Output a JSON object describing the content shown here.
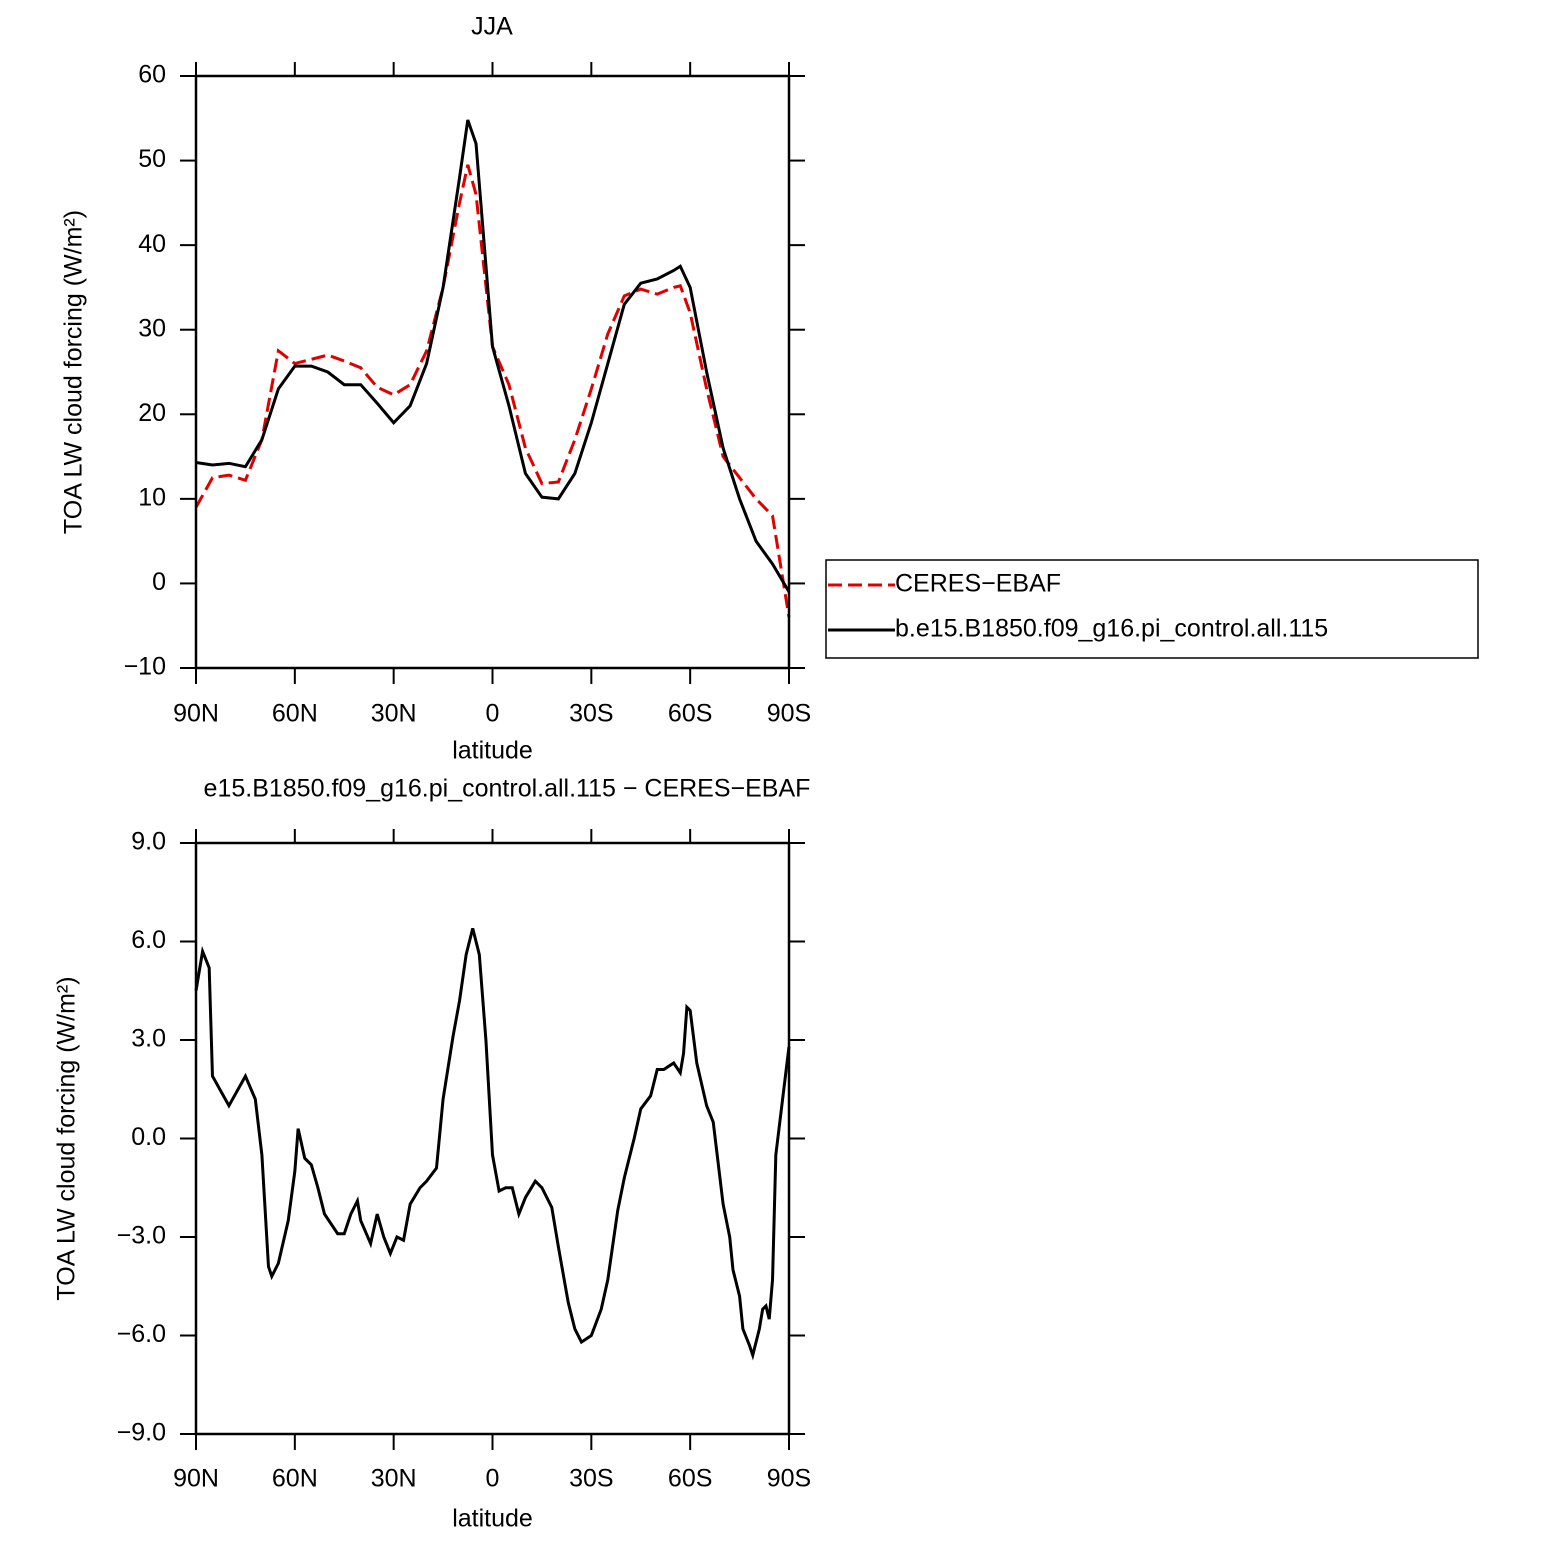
{
  "chart_data": [
    {
      "type": "line",
      "title": "JJA",
      "xlabel": "latitude",
      "ylabel": "TOA LW cloud forcing (W/m²)",
      "x": [
        90,
        85,
        80,
        75,
        70,
        65,
        60,
        55,
        50,
        45,
        40,
        35,
        30,
        25,
        20,
        15,
        10,
        7.5,
        5,
        0,
        -5,
        -10,
        -15,
        -20,
        -25,
        -30,
        -35,
        -40,
        -45,
        -50,
        -55,
        -57,
        -60,
        -65,
        -70,
        -75,
        -80,
        -85,
        -90
      ],
      "series": [
        {
          "name": "CERES−EBAF",
          "color": "#e00000",
          "style": "dashed",
          "values": [
            9,
            12.5,
            12.8,
            12.2,
            17,
            27.5,
            26,
            26.5,
            27,
            26.3,
            25.5,
            23.2,
            22.3,
            23.5,
            27.5,
            35,
            45,
            49.5,
            46,
            28,
            23.5,
            16,
            11.8,
            12,
            17,
            23,
            29.5,
            34,
            34.8,
            34.2,
            35,
            35.2,
            32,
            23,
            15,
            12.5,
            10,
            8,
            -4
          ]
        },
        {
          "name": "b.e15.B1850.f09_g16.pi_control.all.115",
          "color": "#000000",
          "style": "solid",
          "values": [
            14.3,
            14,
            14.2,
            13.8,
            17,
            23,
            25.7,
            25.7,
            25,
            23.5,
            23.5,
            21.3,
            19,
            21,
            26,
            35,
            48,
            54.8,
            52,
            28,
            21,
            13,
            10.2,
            10,
            13,
            19,
            26,
            33,
            35.5,
            36,
            37,
            37.5,
            35,
            25,
            16,
            10,
            5,
            2.3,
            -1
          ]
        }
      ],
      "xlim": [
        90,
        -90
      ],
      "ylim": [
        -10,
        60
      ],
      "xticks": [
        {
          "value": 90,
          "label": "90N"
        },
        {
          "value": 60,
          "label": "60N"
        },
        {
          "value": 30,
          "label": "30N"
        },
        0,
        {
          "value": -30,
          "label": "30S"
        },
        {
          "value": -60,
          "label": "60S"
        },
        {
          "value": -90,
          "label": "90S"
        }
      ],
      "yticks": [
        {
          "value": -10,
          "label": "−10"
        },
        0,
        10,
        20,
        30,
        40,
        50,
        60
      ],
      "legend": "outside right"
    },
    {
      "type": "line",
      "title": "e15.B1850.f09_g16.pi_control.all.115 − CERES−EBAF",
      "xlabel": "latitude",
      "ylabel": "TOA LW cloud forcing (W/m²)",
      "x": [
        90,
        88,
        86,
        85,
        80,
        75,
        72,
        70,
        68,
        67,
        65,
        62,
        60,
        59,
        57,
        55,
        53,
        51,
        47,
        45,
        43,
        41,
        40,
        37,
        35,
        33,
        31,
        29,
        27,
        25,
        22,
        20,
        17,
        15,
        12,
        10,
        8,
        6,
        4,
        2,
        0,
        -2,
        -4,
        -6,
        -8,
        -10,
        -13,
        -15,
        -18,
        -20,
        -23,
        -25,
        -27,
        -30,
        -33,
        -35,
        -38,
        -40,
        -43,
        -45,
        -48,
        -50,
        -52,
        -55,
        -57,
        -58,
        -59,
        -60,
        -62,
        -65,
        -67,
        -70,
        -72,
        -73,
        -75,
        -76,
        -78,
        -79,
        -81,
        -82,
        -83,
        -84,
        -85,
        -86,
        -90
      ],
      "series": [
        {
          "color": "#000000",
          "style": "solid",
          "values": [
            4.5,
            5.7,
            5.2,
            1.9,
            1.0,
            1.9,
            1.2,
            -0.5,
            -3.9,
            -4.2,
            -3.8,
            -2.5,
            -1.0,
            0.3,
            -0.6,
            -0.8,
            -1.5,
            -2.3,
            -2.9,
            -2.9,
            -2.3,
            -1.9,
            -2.5,
            -3.2,
            -2.3,
            -3.0,
            -3.5,
            -3.0,
            -3.1,
            -2.0,
            -1.5,
            -1.3,
            -0.9,
            1.2,
            3.1,
            4.2,
            5.6,
            6.4,
            5.6,
            3.0,
            -0.5,
            -1.6,
            -1.5,
            -1.5,
            -2.3,
            -1.8,
            -1.3,
            -1.5,
            -2.1,
            -3.3,
            -5.0,
            -5.8,
            -6.2,
            -6.0,
            -5.2,
            -4.3,
            -2.2,
            -1.2,
            0.0,
            0.9,
            1.3,
            2.1,
            2.1,
            2.3,
            2.0,
            2.6,
            4.0,
            3.9,
            2.3,
            1.0,
            0.5,
            -2.0,
            -3.0,
            -4.0,
            -4.8,
            -5.8,
            -6.3,
            -6.6,
            -5.8,
            -5.2,
            -5.1,
            -5.5,
            -4.3,
            -0.5,
            2.8
          ]
        }
      ],
      "xlim": [
        90,
        -90
      ],
      "ylim": [
        -9,
        9
      ],
      "xticks": [
        {
          "value": 90,
          "label": "90N"
        },
        {
          "value": 60,
          "label": "60N"
        },
        {
          "value": 30,
          "label": "30N"
        },
        0,
        {
          "value": -30,
          "label": "30S"
        },
        {
          "value": -60,
          "label": "60S"
        },
        {
          "value": -90,
          "label": "90S"
        }
      ],
      "yticks": [
        {
          "value": -9,
          "label": "−9.0"
        },
        {
          "value": -6,
          "label": "−6.0"
        },
        {
          "value": -3,
          "label": "−3.0"
        },
        {
          "value": 0,
          "label": "0.0"
        },
        {
          "value": 3,
          "label": "3.0"
        },
        {
          "value": 6,
          "label": "6.0"
        },
        {
          "value": 9,
          "label": "9.0"
        }
      ]
    }
  ]
}
